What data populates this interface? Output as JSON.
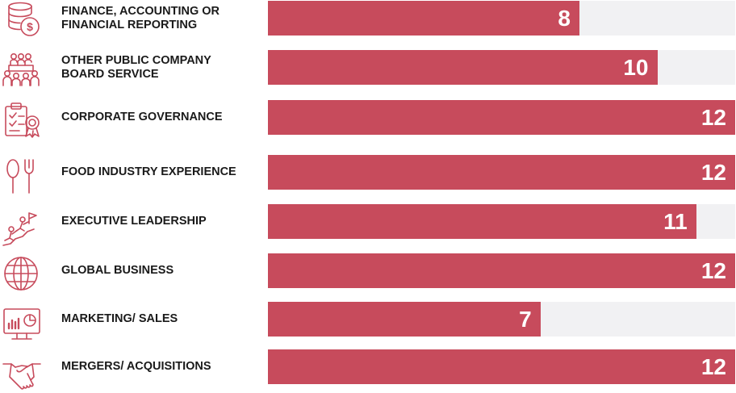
{
  "chart_data": {
    "type": "bar",
    "orientation": "horizontal",
    "categories": [
      "FINANCE, ACCOUNTING OR\n  FINANCIAL REPORTING",
      "OTHER PUBLIC COMPANY\n  BOARD SERVICE",
      "CORPORATE GOVERNANCE",
      "FOOD INDUSTRY EXPERIENCE",
      "EXECUTIVE LEADERSHIP",
      "GLOBAL BUSINESS",
      "MARKETING/ SALES",
      "MERGERS/ ACQUISITIONS"
    ],
    "values": [
      8,
      10,
      12,
      12,
      11,
      12,
      7,
      12
    ],
    "xlim": [
      0,
      12
    ],
    "icons": [
      "coins-icon",
      "boardroom-icon",
      "governance-certificate-icon",
      "spoon-fork-icon",
      "summit-leadership-icon",
      "globe-icon",
      "presentation-chart-icon",
      "handshake-icon"
    ],
    "bar_color": "#c74b5c",
    "track_color": "#f1f1f3",
    "icon_color": "#c74b5c"
  }
}
